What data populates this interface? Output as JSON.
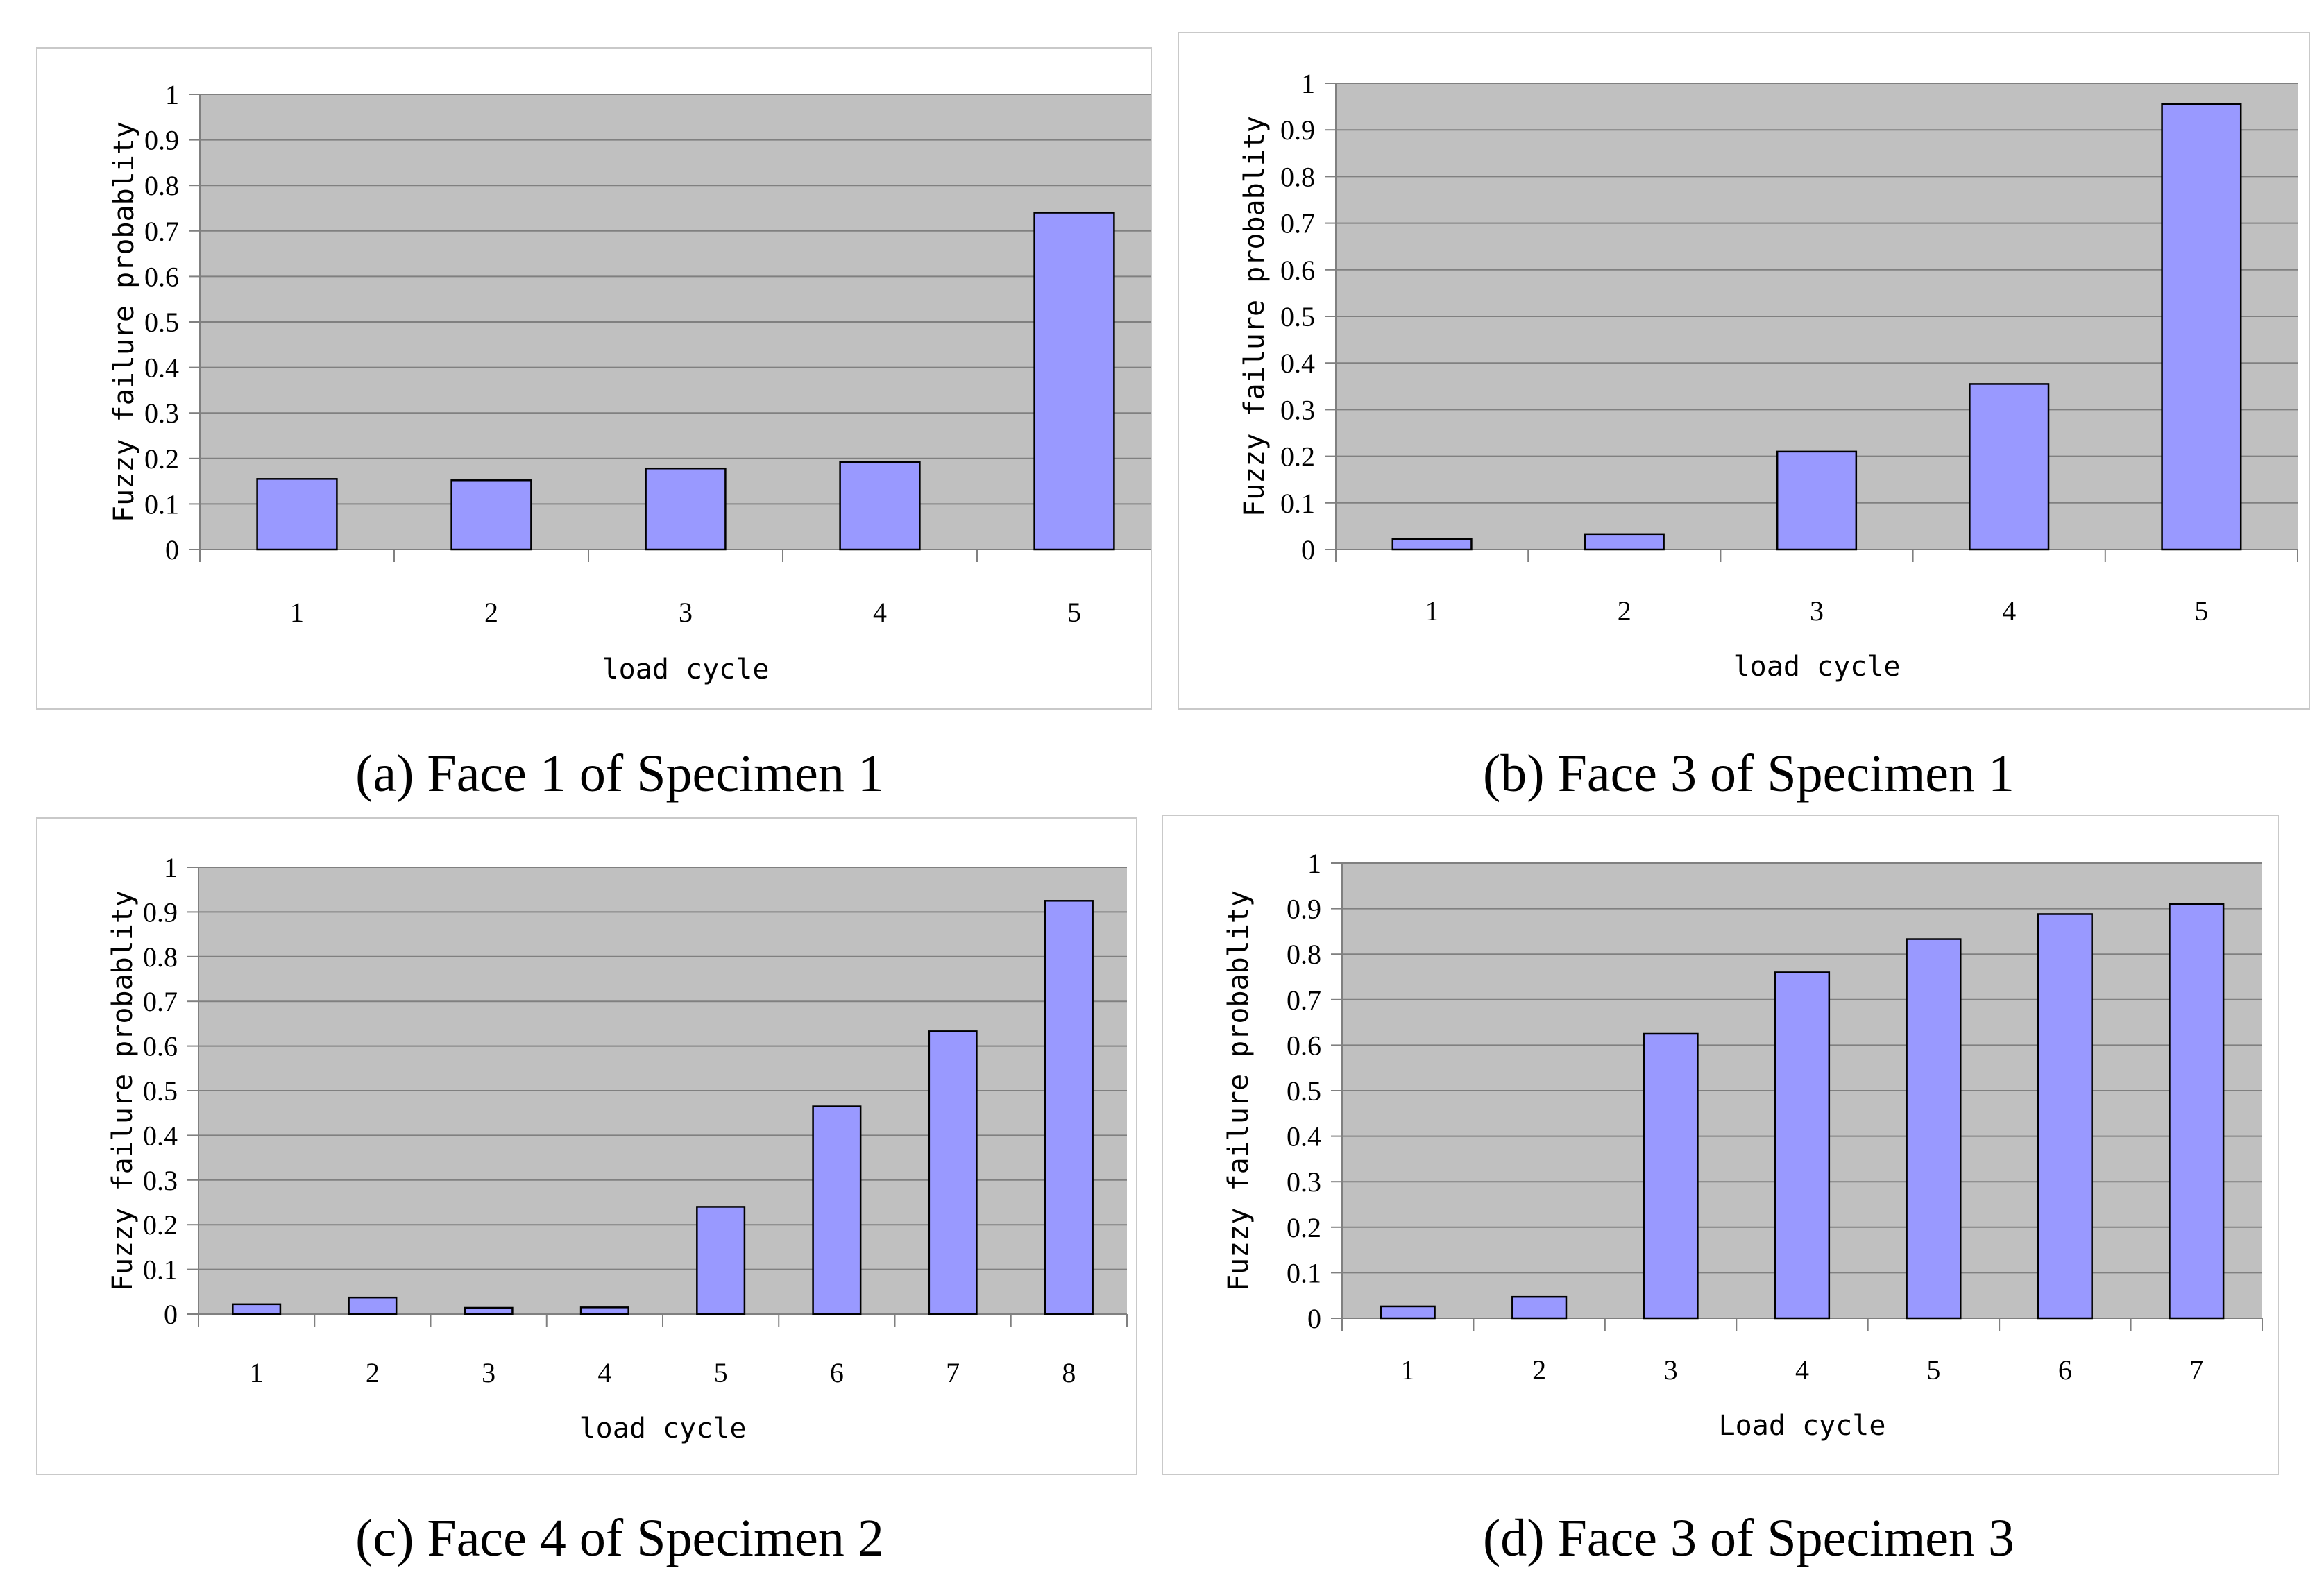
{
  "colors": {
    "plot_bg": "#c0c0c0",
    "bar_fill": "#9999ff",
    "bar_stroke": "#000000",
    "grid": "#808080",
    "axis": "#808080"
  },
  "chart_data": [
    {
      "id": "a",
      "type": "bar",
      "caption": "(a) Face 1 of Specimen 1",
      "xlabel": "load cycle",
      "ylabel": "Fuzzy failure probablity",
      "categories": [
        "1",
        "2",
        "3",
        "4",
        "5"
      ],
      "values": [
        0.155,
        0.152,
        0.178,
        0.192,
        0.74
      ],
      "ylim": [
        0,
        1
      ],
      "yticks": [
        "0",
        "0.1",
        "0.2",
        "0.3",
        "0.4",
        "0.5",
        "0.6",
        "0.7",
        "0.8",
        "0.9",
        "1"
      ],
      "grid": true,
      "legend": "none"
    },
    {
      "id": "b",
      "type": "bar",
      "caption": "(b) Face 3 of Specimen 1",
      "xlabel": "load cycle",
      "ylabel": "Fuzzy failure probablity",
      "categories": [
        "1",
        "2",
        "3",
        "4",
        "5"
      ],
      "values": [
        0.022,
        0.033,
        0.21,
        0.355,
        0.955
      ],
      "ylim": [
        0,
        1
      ],
      "yticks": [
        "0",
        "0.1",
        "0.2",
        "0.3",
        "0.4",
        "0.5",
        "0.6",
        "0.7",
        "0.8",
        "0.9",
        "1"
      ],
      "grid": true,
      "legend": "none"
    },
    {
      "id": "c",
      "type": "bar",
      "caption": "(c) Face 4 of Specimen 2",
      "xlabel": "load cycle",
      "ylabel": "Fuzzy failure probablity",
      "categories": [
        "1",
        "2",
        "3",
        "4",
        "5",
        "6",
        "7",
        "8"
      ],
      "values": [
        0.022,
        0.037,
        0.014,
        0.015,
        0.24,
        0.465,
        0.633,
        0.925
      ],
      "ylim": [
        0,
        1
      ],
      "yticks": [
        "0",
        "0.1",
        "0.2",
        "0.3",
        "0.4",
        "0.5",
        "0.6",
        "0.7",
        "0.8",
        "0.9",
        "1"
      ],
      "grid": true,
      "legend": "none"
    },
    {
      "id": "d",
      "type": "bar",
      "caption": "(d) Face 3 of Specimen 3",
      "xlabel": "Load cycle",
      "ylabel": "Fuzzy failure probablity",
      "categories": [
        "1",
        "2",
        "3",
        "4",
        "5",
        "6",
        "7"
      ],
      "values": [
        0.026,
        0.047,
        0.625,
        0.76,
        0.833,
        0.888,
        0.91
      ],
      "ylim": [
        0,
        1
      ],
      "yticks": [
        "0",
        "0.1",
        "0.2",
        "0.3",
        "0.4",
        "0.5",
        "0.6",
        "0.7",
        "0.8",
        "0.9",
        "1"
      ],
      "grid": true,
      "legend": "none"
    }
  ]
}
